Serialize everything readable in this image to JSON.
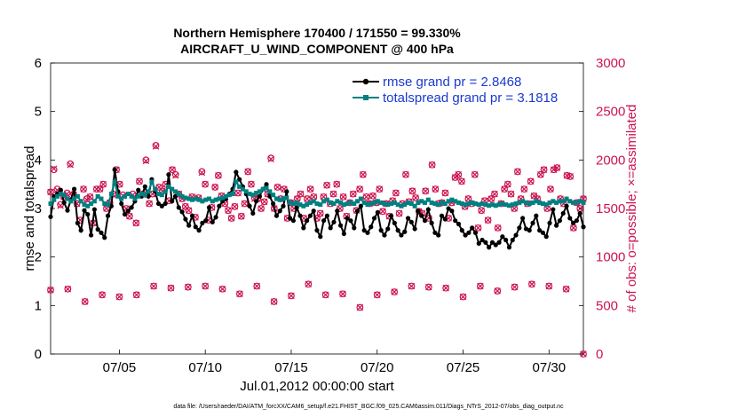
{
  "chart_data": {
    "type": "line",
    "title": "Northern Hemisphere 170400 / 171550 = 99.330%",
    "subtitle": "AIRCRAFT_U_WIND_COMPONENT @ 400 hPa",
    "xlabel": "Jul.01,2012 00:00:00 start",
    "ylabel": "rmse and totalspread",
    "y2label": "# of obs: o=possible; ×=assimilated",
    "xlim": [
      1,
      32
    ],
    "ylim": [
      0,
      6
    ],
    "y2lim": [
      0,
      3000
    ],
    "x_ticks": [
      5,
      10,
      15,
      20,
      25,
      30
    ],
    "x_tick_labels": [
      "07/05",
      "07/10",
      "07/15",
      "07/20",
      "07/25",
      "07/30"
    ],
    "y_ticks": [
      0,
      1,
      2,
      3,
      4,
      5,
      6
    ],
    "y2_ticks": [
      0,
      500,
      1000,
      1500,
      2000,
      2500,
      3000
    ],
    "legend_position": "top-right",
    "series": [
      {
        "name": "rmse grand pr = 2.8468",
        "color": "#000000",
        "axis": "left",
        "values": [
          2.83,
          3.25,
          3.3,
          3.38,
          3.12,
          2.96,
          3.18,
          3.4,
          2.7,
          2.55,
          2.96,
          2.88,
          2.45,
          2.98,
          2.57,
          2.5,
          2.4,
          2.85,
          3.05,
          3.8,
          3.35,
          3.1,
          2.88,
          2.95,
          3.02,
          3.15,
          3.38,
          3.25,
          3.45,
          3.25,
          3.6,
          3.35,
          3.1,
          3.05,
          3.1,
          3.7,
          3.15,
          3.25,
          3.02,
          2.93,
          2.78,
          2.65,
          2.85,
          2.62,
          2.55,
          2.7,
          2.75,
          3.02,
          2.72,
          2.82,
          3.05,
          3.15,
          3.2,
          3.3,
          3.4,
          3.75,
          3.6,
          3.45,
          3.3,
          3.05,
          2.9,
          3.15,
          3.25,
          3.4,
          3.5,
          3.25,
          3.1,
          2.85,
          2.95,
          3.05,
          3.35,
          2.8,
          2.75,
          3.02,
          2.85,
          2.6,
          2.75,
          2.85,
          2.95,
          2.55,
          2.42,
          2.75,
          2.85,
          2.6,
          2.72,
          2.95,
          2.65,
          2.48,
          2.8,
          2.75,
          2.6,
          2.95,
          3.05,
          2.55,
          2.5,
          2.62,
          2.8,
          2.92,
          2.55,
          2.45,
          2.58,
          2.85,
          2.7,
          2.55,
          2.45,
          2.52,
          2.8,
          2.72,
          2.58,
          2.95,
          2.85,
          2.75,
          2.98,
          2.7,
          2.5,
          2.45,
          2.85,
          2.78,
          3.0,
          2.95,
          2.75,
          2.68,
          2.55,
          2.45,
          2.5,
          2.6,
          2.5,
          2.28,
          2.35,
          2.3,
          2.2,
          2.3,
          2.25,
          2.3,
          2.42,
          2.35,
          2.2,
          2.35,
          2.45,
          2.6,
          2.8,
          2.58,
          2.55,
          2.7,
          2.85,
          2.55,
          2.5,
          2.42,
          2.7,
          2.98,
          2.65,
          2.75,
          2.9,
          3.05,
          2.8,
          2.7,
          2.75,
          2.9,
          2.62
        ]
      },
      {
        "name": "totalspread grand pr = 3.1818",
        "color": "#008080",
        "axis": "left",
        "values": [
          3.1,
          3.18,
          3.25,
          3.3,
          3.28,
          3.2,
          3.15,
          3.2,
          3.25,
          3.15,
          3.08,
          3.05,
          3.1,
          3.15,
          3.25,
          3.2,
          3.1,
          3.08,
          3.3,
          3.55,
          3.25,
          3.2,
          3.25,
          3.3,
          3.25,
          3.2,
          3.25,
          3.3,
          3.28,
          3.35,
          3.55,
          3.4,
          3.3,
          3.28,
          3.35,
          3.45,
          3.4,
          3.35,
          3.3,
          3.25,
          3.22,
          3.2,
          3.18,
          3.2,
          3.18,
          3.15,
          3.18,
          3.2,
          3.15,
          3.18,
          3.2,
          3.22,
          3.25,
          3.28,
          3.3,
          3.55,
          3.45,
          3.4,
          3.35,
          3.3,
          3.28,
          3.32,
          3.35,
          3.4,
          3.42,
          3.35,
          3.28,
          3.2,
          3.18,
          3.2,
          3.22,
          3.12,
          3.1,
          3.12,
          3.08,
          3.05,
          3.08,
          3.12,
          3.15,
          3.1,
          3.08,
          3.15,
          3.18,
          3.12,
          3.1,
          3.15,
          3.12,
          3.08,
          3.1,
          3.12,
          3.1,
          3.15,
          3.2,
          3.12,
          3.08,
          3.1,
          3.12,
          3.15,
          3.12,
          3.1,
          3.08,
          3.1,
          3.12,
          3.08,
          3.05,
          3.08,
          3.12,
          3.1,
          3.05,
          3.12,
          3.15,
          3.12,
          3.18,
          3.12,
          3.1,
          3.08,
          3.12,
          3.1,
          3.15,
          3.18,
          3.15,
          3.12,
          3.1,
          3.08,
          3.1,
          3.12,
          3.1,
          3.08,
          3.1,
          3.08,
          3.06,
          3.08,
          3.06,
          3.08,
          3.1,
          3.08,
          3.06,
          3.08,
          3.1,
          3.12,
          3.15,
          3.12,
          3.1,
          3.12,
          3.15,
          3.12,
          3.1,
          3.08,
          3.12,
          3.15,
          3.12,
          3.15,
          3.15,
          3.2,
          3.15,
          3.12,
          3.12,
          3.15,
          3.12
        ]
      },
      {
        "name": "possible obs",
        "color": "#cc1450",
        "axis": "right",
        "marker": "o",
        "values": [
          1670,
          1900,
          1700,
          1540,
          1620,
          1660,
          1960,
          1650,
          1550,
          1380,
          1700,
          1600,
          1620,
          1350,
          1700,
          1700,
          1750,
          1500,
          1560,
          1650,
          1900,
          1750,
          1640,
          1500,
          1420,
          1650,
          1350,
          1780,
          1650,
          2000,
          1550,
          1650,
          2150,
          1720,
          1680,
          1750,
          1580,
          1900,
          1850,
          1650,
          1600,
          1520,
          1480,
          1620,
          1410,
          1610,
          1880,
          1750,
          1380,
          1510,
          1720,
          1840,
          1630,
          1550,
          1480,
          1400,
          1520,
          1660,
          1420,
          1550,
          1880,
          1750,
          1610,
          1600,
          1500,
          1570,
          1650,
          2020,
          1500,
          1720,
          1600,
          1700,
          1400,
          1560,
          1500,
          1600,
          1650,
          1400,
          1600,
          1700,
          1620,
          1400,
          1450,
          1620,
          1740,
          1550,
          1650,
          1750,
          1500,
          1620,
          1420,
          1560,
          1650,
          1480,
          1700,
          1850,
          1620,
          1550,
          1630,
          1560,
          1700,
          1470,
          1550,
          1420,
          1580,
          1660,
          1450,
          1550,
          1850,
          1570,
          1680,
          1610,
          1470,
          1450,
          1680,
          1400,
          1950,
          1700,
          1550,
          1560,
          1660,
          1400,
          1560,
          1820,
          1850,
          1780,
          1520,
          1600,
          1550,
          1850,
          1300,
          1480,
          1580,
          1380,
          1600,
          1650,
          1300,
          1550,
          1700,
          1750,
          1650,
          1500,
          1880,
          1600,
          1700,
          1550,
          1780,
          1630,
          1600,
          1850,
          1900,
          1500,
          1700,
          1900,
          1920,
          1600,
          1550,
          1840,
          1830,
          1300,
          1560,
          1500,
          1600
        ]
      },
      {
        "name": "assimilated obs",
        "color": "#cc1450",
        "axis": "right",
        "marker": "x",
        "values": [
          1670,
          1910,
          1690,
          1530,
          1620,
          1650,
          1950,
          1640,
          1550,
          1380,
          1700,
          1590,
          1620,
          1350,
          1700,
          1700,
          1750,
          1500,
          1560,
          1640,
          1900,
          1750,
          1630,
          1500,
          1420,
          1640,
          1350,
          1780,
          1640,
          1990,
          1550,
          1650,
          2140,
          1720,
          1680,
          1750,
          1580,
          1900,
          1840,
          1650,
          1600,
          1520,
          1480,
          1620,
          1410,
          1610,
          1870,
          1750,
          1380,
          1510,
          1720,
          1840,
          1630,
          1550,
          1480,
          1400,
          1520,
          1660,
          1420,
          1550,
          1880,
          1750,
          1600,
          1600,
          1500,
          1570,
          1650,
          2010,
          1500,
          1720,
          1600,
          1700,
          1400,
          1560,
          1500,
          1600,
          1650,
          1400,
          1600,
          1700,
          1620,
          1400,
          1450,
          1620,
          1740,
          1550,
          1650,
          1750,
          1500,
          1620,
          1420,
          1560,
          1650,
          1480,
          1700,
          1850,
          1620,
          1550,
          1630,
          1560,
          1700,
          1470,
          1550,
          1420,
          1580,
          1660,
          1450,
          1550,
          1850,
          1570,
          1680,
          1610,
          1470,
          1450,
          1680,
          1400,
          1950,
          1700,
          1550,
          1560,
          1660,
          1400,
          1560,
          1820,
          1850,
          1780,
          1520,
          1600,
          1550,
          1850,
          1300,
          1480,
          1580,
          1380,
          1600,
          1650,
          1300,
          1550,
          1700,
          1750,
          1650,
          1500,
          1880,
          1600,
          1700,
          1550,
          1780,
          1630,
          1600,
          1850,
          1900,
          1500,
          1700,
          1900,
          1920,
          1600,
          1550,
          1840,
          1830,
          1300,
          1560,
          1500,
          1600
        ]
      },
      {
        "name": "possible obs (low cycles)",
        "color": "#cc1450",
        "axis": "right",
        "marker": "o",
        "x": [
          1,
          2,
          3,
          4,
          5,
          6,
          7,
          8,
          9,
          10,
          11,
          12,
          13,
          14,
          15,
          16,
          17,
          18,
          19,
          20,
          21,
          22,
          23,
          24,
          25,
          26,
          27,
          28,
          29,
          30,
          31,
          32
        ],
        "values": [
          660,
          670,
          540,
          610,
          590,
          610,
          700,
          680,
          690,
          700,
          670,
          620,
          700,
          540,
          600,
          720,
          610,
          620,
          480,
          610,
          640,
          700,
          690,
          680,
          590,
          700,
          650,
          690,
          720,
          700,
          670,
          0
        ]
      }
    ]
  },
  "footer": {
    "text": "data file: /Users/raeder/DAI/ATM_forcXX/CAM6_setup/f.e21.FHIST_BGC.f09_025.CAM6assim.011/Diags_NTrS_2012-07/obs_diag_output.nc"
  },
  "colors": {
    "rmse": "#000000",
    "spread": "#008080",
    "obs": "#cc1450",
    "legend_text": "#1a3ad0"
  }
}
